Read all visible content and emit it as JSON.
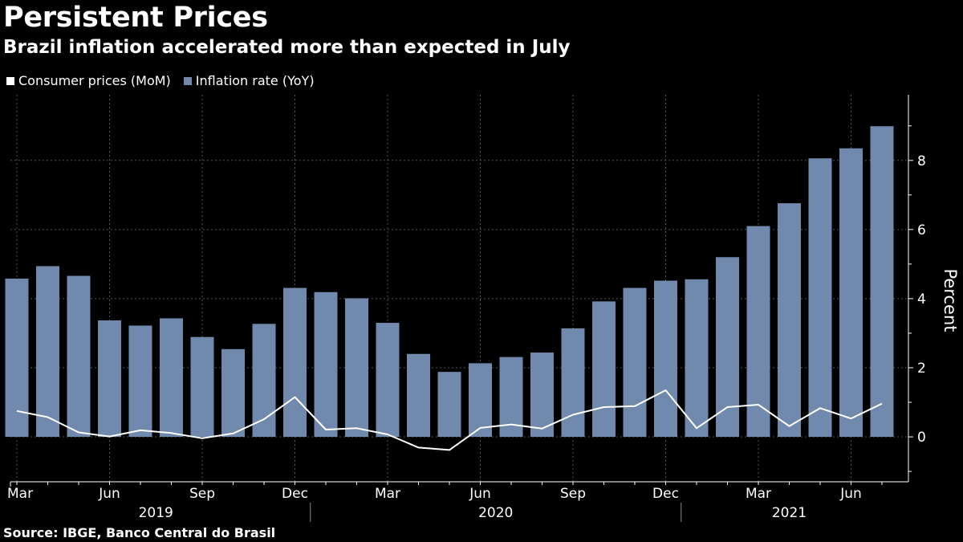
{
  "header": {
    "title": "Persistent Prices",
    "subtitle": "Brazil inflation accelerated more than expected in July"
  },
  "legend": {
    "items": [
      {
        "label": "Consumer prices (MoM)",
        "color": "#ffffff"
      },
      {
        "label": "Inflation rate (YoY)",
        "color": "#7089ad"
      }
    ]
  },
  "footer": {
    "source": "Source: IBGE, Banco Central do Brasil"
  },
  "colors": {
    "background": "#000000",
    "bar": "#7089ad",
    "line": "#ffffff",
    "grid": "#555555",
    "axis": "#ffffff"
  },
  "chart_data": {
    "type": "bar",
    "title": "Persistent Prices",
    "subtitle": "Brazil inflation accelerated more than expected in July",
    "ylabel": "Percent",
    "ylim": [
      -1.3,
      9.9
    ],
    "yticks": [
      0,
      2,
      4,
      6,
      8
    ],
    "grid": true,
    "legend_position": "top-left",
    "categories": [
      "Mar 2019",
      "Apr 2019",
      "May 2019",
      "Jun 2019",
      "Jul 2019",
      "Aug 2019",
      "Sep 2019",
      "Oct 2019",
      "Nov 2019",
      "Dec 2019",
      "Jan 2020",
      "Feb 2020",
      "Mar 2020",
      "Apr 2020",
      "May 2020",
      "Jun 2020",
      "Jul 2020",
      "Aug 2020",
      "Sep 2020",
      "Oct 2020",
      "Nov 2020",
      "Dec 2020",
      "Jan 2021",
      "Feb 2021",
      "Mar 2021",
      "Apr 2021",
      "May 2021",
      "Jun 2021",
      "Jul 2021"
    ],
    "x_tick_labels": [
      {
        "index": 0,
        "label": "Mar"
      },
      {
        "index": 3,
        "label": "Jun"
      },
      {
        "index": 6,
        "label": "Sep"
      },
      {
        "index": 9,
        "label": "Dec"
      },
      {
        "index": 12,
        "label": "Mar"
      },
      {
        "index": 15,
        "label": "Jun"
      },
      {
        "index": 18,
        "label": "Sep"
      },
      {
        "index": 21,
        "label": "Dec"
      },
      {
        "index": 24,
        "label": "Mar"
      },
      {
        "index": 27,
        "label": "Jun"
      }
    ],
    "year_labels": [
      {
        "label": "2019",
        "start": 0,
        "end": 9
      },
      {
        "label": "2020",
        "start": 10,
        "end": 21
      },
      {
        "label": "2021",
        "start": 22,
        "end": 28
      }
    ],
    "series": [
      {
        "name": "Inflation rate (YoY)",
        "type": "bar",
        "values": [
          4.58,
          4.94,
          4.66,
          3.37,
          3.22,
          3.43,
          2.89,
          2.54,
          3.27,
          4.31,
          4.19,
          4.01,
          3.3,
          2.4,
          1.88,
          2.13,
          2.31,
          2.44,
          3.14,
          3.92,
          4.31,
          4.52,
          4.56,
          5.2,
          6.1,
          6.76,
          8.06,
          8.35,
          8.99
        ]
      },
      {
        "name": "Consumer prices (MoM)",
        "type": "line",
        "values": [
          0.75,
          0.57,
          0.13,
          0.01,
          0.19,
          0.11,
          -0.04,
          0.1,
          0.51,
          1.15,
          0.21,
          0.25,
          0.07,
          -0.31,
          -0.38,
          0.26,
          0.36,
          0.24,
          0.64,
          0.86,
          0.89,
          1.35,
          0.25,
          0.86,
          0.93,
          0.31,
          0.83,
          0.53,
          0.96
        ]
      }
    ]
  }
}
